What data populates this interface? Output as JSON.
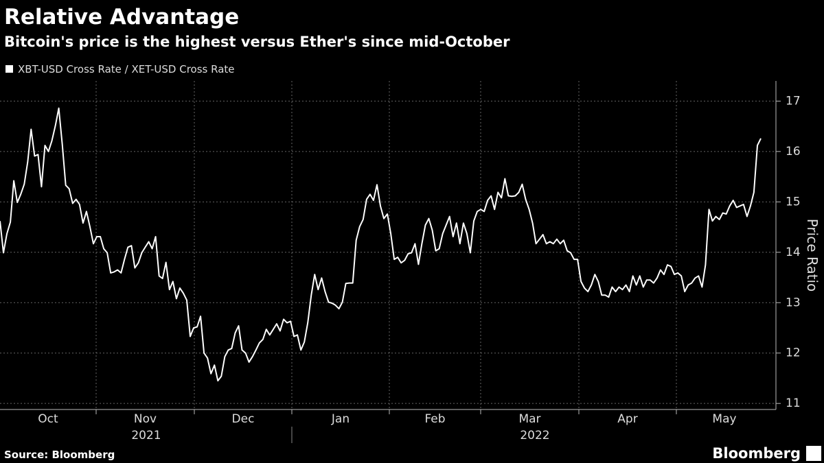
{
  "chart_data": {
    "type": "line",
    "title": "Relative Advantage",
    "subtitle": "Bitcoin's price is the highest versus Ether's since mid-October",
    "y_axis_label": "Price Ratio",
    "x_labels": [
      "Oct",
      "Nov",
      "Dec",
      "Jan",
      "Feb",
      "Mar",
      "Apr",
      "May"
    ],
    "year_labels": [
      "2021",
      "2022"
    ],
    "source": "Source: Bloomberg",
    "brand": "Bloomberg",
    "ylim": [
      10.88,
      17.4
    ],
    "yticks": [
      11,
      12,
      13,
      14,
      15,
      16,
      17
    ],
    "grid": true,
    "series": [
      {
        "name": "XBT-USD Cross Rate / XET-USD Cross Rate",
        "color": "#ffffff",
        "values": [
          14.62,
          13.99,
          14.37,
          14.6,
          15.42,
          14.99,
          15.15,
          15.35,
          15.79,
          16.44,
          15.91,
          15.94,
          15.3,
          16.12,
          16.0,
          16.21,
          16.51,
          16.86,
          16.14,
          15.33,
          15.26,
          14.97,
          15.05,
          14.95,
          14.58,
          14.81,
          14.51,
          14.17,
          14.31,
          14.31,
          14.07,
          13.99,
          13.59,
          13.61,
          13.65,
          13.59,
          13.86,
          14.1,
          14.13,
          13.69,
          13.79,
          13.99,
          14.1,
          14.21,
          14.07,
          14.31,
          13.53,
          13.48,
          13.8,
          13.26,
          13.42,
          13.08,
          13.29,
          13.19,
          13.05,
          12.33,
          12.5,
          12.52,
          12.73,
          12.0,
          11.9,
          11.59,
          11.76,
          11.45,
          11.54,
          11.93,
          12.06,
          12.09,
          12.4,
          12.54,
          12.06,
          12.0,
          11.82,
          11.93,
          12.06,
          12.2,
          12.27,
          12.47,
          12.36,
          12.47,
          12.58,
          12.44,
          12.67,
          12.6,
          12.63,
          12.33,
          12.36,
          12.06,
          12.22,
          12.6,
          13.15,
          13.56,
          13.26,
          13.49,
          13.22,
          13.01,
          12.99,
          12.95,
          12.88,
          13.01,
          13.38,
          13.39,
          13.39,
          14.24,
          14.51,
          14.65,
          15.05,
          15.15,
          15.03,
          15.34,
          14.92,
          14.67,
          14.76,
          14.37,
          13.86,
          13.9,
          13.79,
          13.84,
          13.97,
          13.99,
          14.17,
          13.76,
          14.17,
          14.54,
          14.67,
          14.44,
          14.03,
          14.07,
          14.37,
          14.54,
          14.71,
          14.31,
          14.58,
          14.17,
          14.58,
          14.37,
          13.99,
          14.62,
          14.81,
          14.85,
          14.81,
          15.03,
          15.12,
          14.85,
          15.19,
          15.08,
          15.46,
          15.12,
          15.11,
          15.12,
          15.19,
          15.35,
          15.05,
          14.85,
          14.58,
          14.17,
          14.26,
          14.35,
          14.17,
          14.21,
          14.17,
          14.26,
          14.17,
          14.24,
          14.03,
          13.99,
          13.86,
          13.86,
          13.42,
          13.29,
          13.22,
          13.35,
          13.56,
          13.42,
          13.15,
          13.15,
          13.11,
          13.31,
          13.22,
          13.31,
          13.26,
          13.35,
          13.22,
          13.53,
          13.35,
          13.53,
          13.31,
          13.45,
          13.45,
          13.39,
          13.49,
          13.65,
          13.56,
          13.75,
          13.72,
          13.56,
          13.59,
          13.53,
          13.22,
          13.35,
          13.39,
          13.49,
          13.53,
          13.31,
          13.75,
          14.85,
          14.62,
          14.71,
          14.65,
          14.78,
          14.76,
          14.92,
          15.03,
          14.89,
          14.92,
          14.95,
          14.71,
          14.92,
          15.19,
          16.12,
          16.26
        ]
      }
    ]
  }
}
